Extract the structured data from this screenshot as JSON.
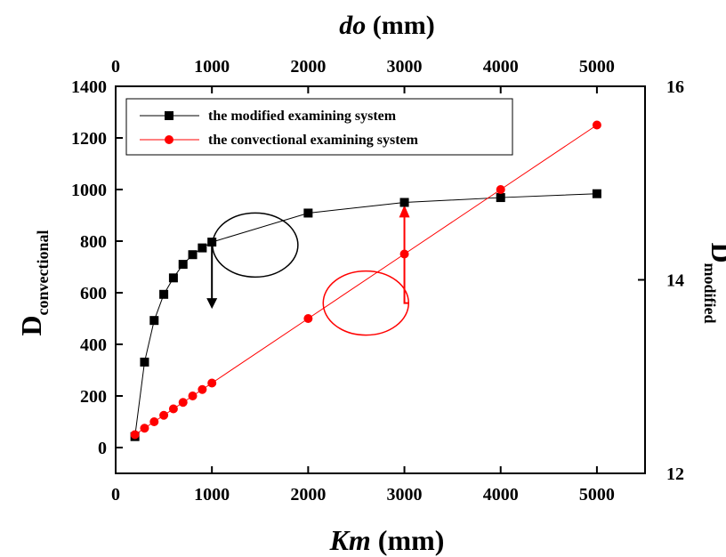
{
  "chart_data": {
    "type": "line",
    "top_axis": {
      "label_italic": "do",
      "label_rest": " (mm)",
      "range": [
        0,
        5500
      ],
      "ticks": [
        0,
        1000,
        2000,
        3000,
        4000,
        5000
      ]
    },
    "x_axis": {
      "label_italic": "Km",
      "label_rest": " (mm)",
      "range": [
        0,
        5500
      ],
      "ticks": [
        0,
        1000,
        2000,
        3000,
        4000,
        5000
      ]
    },
    "left_axis": {
      "label_main": "D",
      "label_sub": "convectional",
      "range": [
        -100,
        1400
      ],
      "ticks": [
        0,
        200,
        400,
        600,
        800,
        1000,
        1200,
        1400
      ]
    },
    "right_axis": {
      "label_main": "D",
      "label_sub": "modified",
      "range": [
        12,
        16
      ],
      "ticks": [
        12,
        14,
        16
      ]
    },
    "series": [
      {
        "name": "the modified examining system",
        "axis": "right",
        "color": "#000000",
        "marker": "square",
        "x": [
          200,
          300,
          400,
          500,
          600,
          700,
          800,
          900,
          1000,
          2000,
          3000,
          4000,
          5000
        ],
        "y": [
          12.38,
          13.15,
          13.58,
          13.85,
          14.02,
          14.16,
          14.26,
          14.33,
          14.39,
          14.69,
          14.8,
          14.85,
          14.89
        ]
      },
      {
        "name": "the convectional examining system",
        "axis": "left",
        "color": "#ff0000",
        "marker": "circle",
        "x": [
          200,
          300,
          400,
          500,
          600,
          700,
          800,
          900,
          1000,
          2000,
          3000,
          4000,
          5000
        ],
        "y": [
          50,
          75,
          100,
          125,
          150,
          175,
          200,
          225,
          250,
          500,
          750,
          1000,
          1250
        ]
      }
    ],
    "annotations": [
      {
        "type": "ellipse",
        "color": "#000000",
        "center": [
          1450,
          14.36
        ],
        "arrow_tip": [
          1000,
          13.7
        ]
      },
      {
        "type": "ellipse",
        "color": "#ff0000",
        "center": [
          2600,
          560
        ],
        "arrow_tip": [
          3000,
          940
        ]
      }
    ],
    "legend_position": "top-left",
    "grid": false
  }
}
